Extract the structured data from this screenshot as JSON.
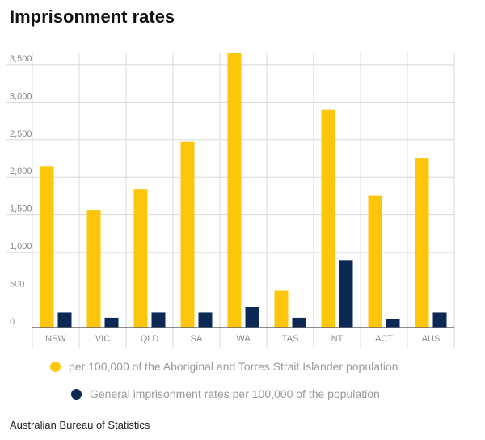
{
  "title": "Imprisonment rates",
  "source": "Australian Bureau of Statistics",
  "colors": {
    "indigenous": "#fec60a",
    "general": "#0c2854",
    "grid": "#d8d8d8",
    "axis": "#666666"
  },
  "chart_data": {
    "type": "bar",
    "title": "Imprisonment rates",
    "xlabel": "",
    "ylabel": "",
    "ylim": [
      0,
      3650
    ],
    "yticks": [
      0,
      500,
      1000,
      1500,
      2000,
      2500,
      3000,
      3500
    ],
    "ytick_labels": [
      "0",
      "500",
      "1,000",
      "1,500",
      "2,000",
      "2,500",
      "3,000",
      "3,500"
    ],
    "categories": [
      "NSW",
      "VIC",
      "QLD",
      "SA",
      "WA",
      "TAS",
      "NT",
      "ACT",
      "AUS"
    ],
    "series": [
      {
        "name": "per 100,000 of the Aboriginal and Torres Strait Islander population",
        "values": [
          2150,
          1560,
          1840,
          2480,
          3650,
          490,
          2900,
          1760,
          2260
        ]
      },
      {
        "name": "General imprisonment rates per 100,000 of the population",
        "values": [
          200,
          130,
          200,
          200,
          280,
          130,
          890,
          115,
          200
        ]
      }
    ],
    "grid": true,
    "legend_position": "bottom"
  }
}
